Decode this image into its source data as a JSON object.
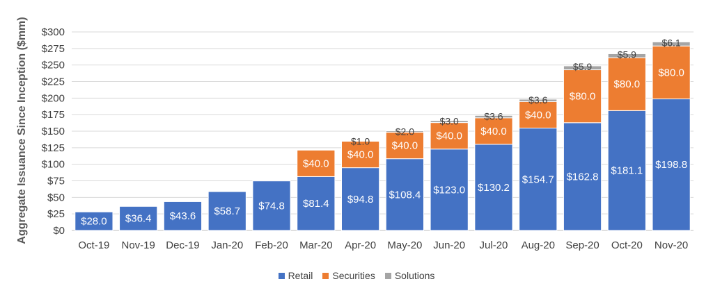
{
  "chart_data": {
    "type": "bar",
    "stacked": true,
    "title": "",
    "xlabel": "",
    "ylabel": "Aggregate Issuance Since Inception ($mm)",
    "ylim": [
      0,
      300
    ],
    "ytick_step": 25,
    "ytick_labels": [
      "$0",
      "$25",
      "$50",
      "$75",
      "$100",
      "$125",
      "$150",
      "$175",
      "$200",
      "$225",
      "$250",
      "$275",
      "$300"
    ],
    "grid": true,
    "legend_position": "bottom",
    "categories": [
      "Oct-19",
      "Nov-19",
      "Dec-19",
      "Jan-20",
      "Feb-20",
      "Mar-20",
      "Apr-20",
      "May-20",
      "Jun-20",
      "Jul-20",
      "Aug-20",
      "Sep-20",
      "Oct-20",
      "Nov-20"
    ],
    "series": [
      {
        "name": "Retail",
        "color": "#4472C4",
        "values": [
          28.0,
          36.4,
          43.6,
          58.7,
          74.8,
          81.4,
          94.8,
          108.4,
          123.0,
          130.2,
          154.7,
          162.8,
          181.1,
          198.8
        ],
        "labels": [
          "$28.0",
          "$36.4",
          "$43.6",
          "$58.7",
          "$74.8",
          "$81.4",
          "$94.8",
          "$108.4",
          "$123.0",
          "$130.2",
          "$154.7",
          "$162.8",
          "$181.1",
          "$198.8"
        ]
      },
      {
        "name": "Securities",
        "color": "#ED7D31",
        "values": [
          0,
          0,
          0,
          0,
          0,
          40.0,
          40.0,
          40.0,
          40.0,
          40.0,
          40.0,
          80.0,
          80.0,
          80.0
        ],
        "labels": [
          "",
          "",
          "",
          "",
          "",
          "$40.0",
          "$40.0",
          "$40.0",
          "$40.0",
          "$40.0",
          "$40.0",
          "$80.0",
          "$80.0",
          "$80.0"
        ]
      },
      {
        "name": "Solutions",
        "color": "#A5A5A5",
        "values": [
          0,
          0,
          0,
          0,
          0,
          0,
          1.0,
          2.0,
          3.0,
          3.6,
          3.6,
          5.9,
          5.9,
          6.1
        ],
        "labels": [
          "",
          "",
          "",
          "",
          "",
          "",
          "$1.0",
          "$2.0",
          "$3.0",
          "$3.6",
          "$3.6",
          "$5.9",
          "$5.9",
          "$6.1"
        ]
      }
    ]
  }
}
